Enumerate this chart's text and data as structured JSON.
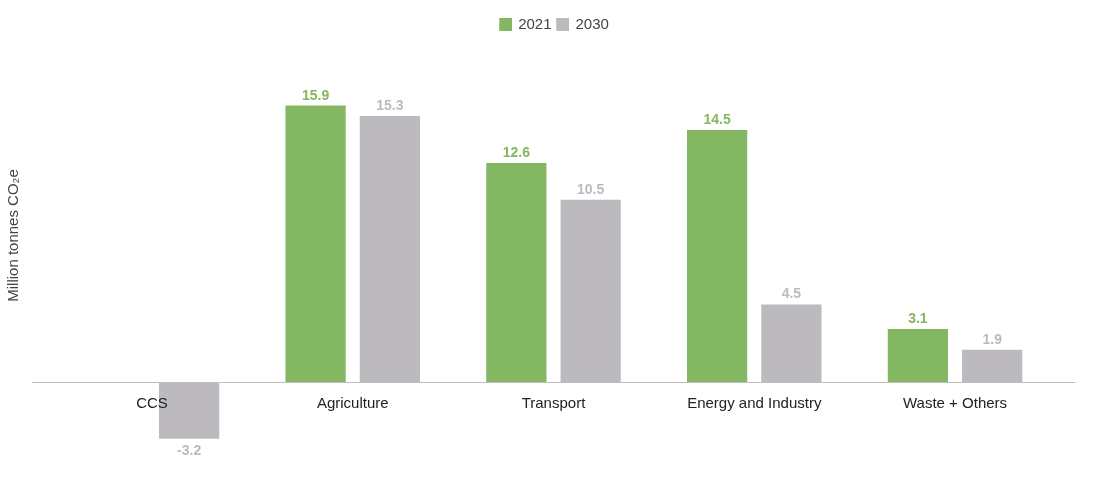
{
  "chart_data": {
    "type": "bar",
    "ylabel": "Million tonnes CO₂e",
    "categories": [
      "CCS",
      "Agriculture",
      "Transport",
      "Energy and Industry",
      "Waste + Others"
    ],
    "series": [
      {
        "name": "2021",
        "color": "#84b761",
        "values": [
          null,
          15.9,
          12.6,
          14.5,
          3.1
        ]
      },
      {
        "name": "2030",
        "color": "#bcbabe",
        "values": [
          -3.2,
          15.3,
          10.5,
          4.5,
          1.9
        ]
      }
    ],
    "data_labels": true,
    "legend": "top",
    "grid": false
  }
}
